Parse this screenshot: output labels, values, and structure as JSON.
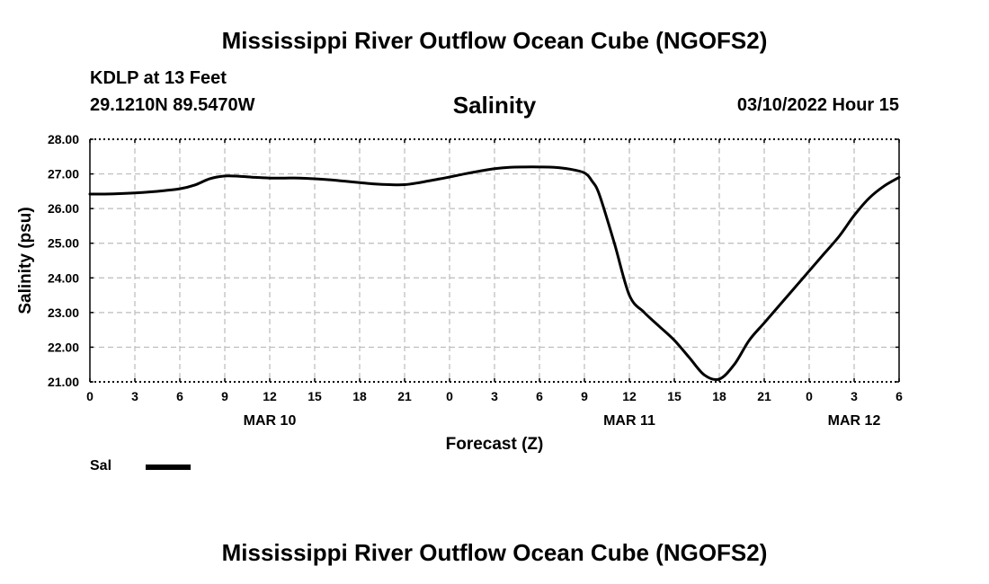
{
  "page": {
    "main_title": "Mississippi River Outflow Ocean Cube (NGOFS2)",
    "footer_title": "Mississippi River Outflow Ocean Cube (NGOFS2)",
    "station": "KDLP at 13 Feet",
    "coords": "29.1210N  89.5470W",
    "run_time": "03/10/2022 Hour 15"
  },
  "chart_data": {
    "type": "line",
    "title": "Salinity",
    "xlabel": "Forecast (Z)",
    "ylabel": "Salinity (psu)",
    "xlim": [
      0,
      54
    ],
    "ylim": [
      21,
      28
    ],
    "grid": true,
    "x_ticks": [
      {
        "value": 0,
        "label": "0"
      },
      {
        "value": 3,
        "label": "3"
      },
      {
        "value": 6,
        "label": "6"
      },
      {
        "value": 9,
        "label": "9"
      },
      {
        "value": 12,
        "label": "12"
      },
      {
        "value": 15,
        "label": "15"
      },
      {
        "value": 18,
        "label": "18"
      },
      {
        "value": 21,
        "label": "21"
      },
      {
        "value": 24,
        "label": "0"
      },
      {
        "value": 27,
        "label": "3"
      },
      {
        "value": 30,
        "label": "6"
      },
      {
        "value": 33,
        "label": "9"
      },
      {
        "value": 36,
        "label": "12"
      },
      {
        "value": 39,
        "label": "15"
      },
      {
        "value": 42,
        "label": "18"
      },
      {
        "value": 45,
        "label": "21"
      },
      {
        "value": 48,
        "label": "0"
      },
      {
        "value": 51,
        "label": "3"
      },
      {
        "value": 54,
        "label": "6"
      }
    ],
    "date_labels": [
      {
        "value": 12,
        "label": "MAR 10"
      },
      {
        "value": 36,
        "label": "MAR 11"
      },
      {
        "value": 51,
        "label": "MAR 12"
      }
    ],
    "y_ticks": [
      {
        "value": 21,
        "label": "21.00"
      },
      {
        "value": 22,
        "label": "22.00"
      },
      {
        "value": 23,
        "label": "23.00"
      },
      {
        "value": 24,
        "label": "24.00"
      },
      {
        "value": 25,
        "label": "25.00"
      },
      {
        "value": 26,
        "label": "26.00"
      },
      {
        "value": 27,
        "label": "27.00"
      },
      {
        "value": 28,
        "label": "28.00"
      }
    ],
    "legend": {
      "position": "bottom-left"
    },
    "series": [
      {
        "name": "Sal",
        "color": "#000000",
        "x": [
          0,
          1,
          2,
          3,
          4,
          5,
          6,
          7,
          8,
          9,
          10,
          11,
          12,
          13,
          14,
          15,
          16,
          17,
          18,
          19,
          20,
          21,
          22,
          23,
          24,
          25,
          26,
          27,
          28,
          29,
          30,
          31,
          32,
          33,
          33.5,
          34,
          35,
          36,
          37,
          38,
          39,
          40,
          41,
          42,
          43,
          44,
          45,
          46,
          47,
          48,
          49,
          50,
          51,
          52,
          53,
          54
        ],
        "values": [
          26.42,
          26.42,
          26.43,
          26.45,
          26.48,
          26.52,
          26.57,
          26.68,
          26.86,
          26.94,
          26.93,
          26.9,
          26.88,
          26.88,
          26.88,
          26.86,
          26.83,
          26.79,
          26.75,
          26.71,
          26.69,
          26.69,
          26.75,
          26.83,
          26.91,
          27.0,
          27.08,
          27.15,
          27.19,
          27.2,
          27.2,
          27.19,
          27.14,
          27.03,
          26.8,
          26.4,
          25.0,
          23.5,
          23.0,
          22.6,
          22.2,
          21.7,
          21.2,
          21.08,
          21.5,
          22.2,
          22.7,
          23.2,
          23.7,
          24.2,
          24.7,
          25.2,
          25.8,
          26.3,
          26.65,
          26.9
        ]
      }
    ]
  }
}
